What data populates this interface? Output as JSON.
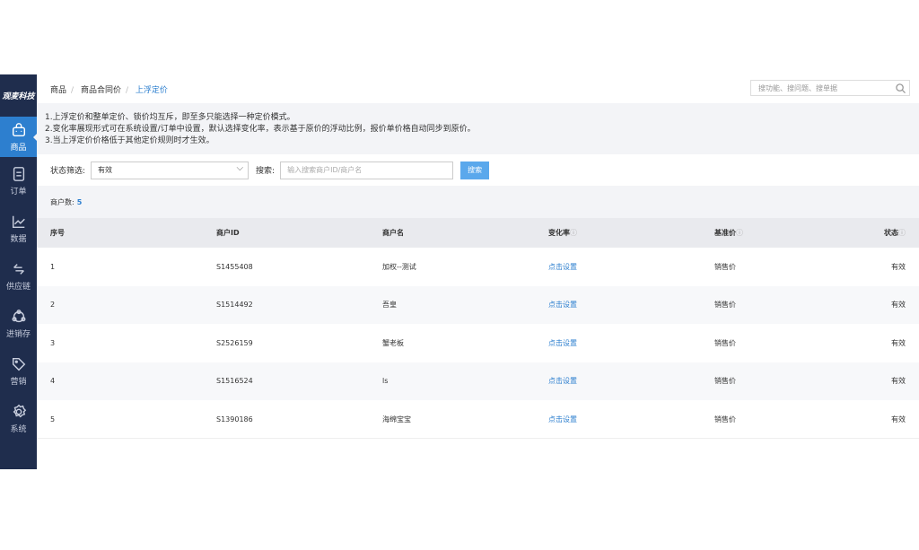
{
  "brand": "观麦科技",
  "sidebar": {
    "items": [
      {
        "label": "商品",
        "icon": "shopping-bag-icon",
        "active": true
      },
      {
        "label": "订单",
        "icon": "document-icon"
      },
      {
        "label": "数据",
        "icon": "chart-icon"
      },
      {
        "label": "供应链",
        "icon": "exchange-icon"
      },
      {
        "label": "进销存",
        "icon": "cycle-icon"
      },
      {
        "label": "营销",
        "icon": "tag-icon"
      },
      {
        "label": "系统",
        "icon": "gear-icon"
      }
    ]
  },
  "breadcrumb": [
    "商品",
    "商品合同价",
    "上浮定价"
  ],
  "global_search": {
    "placeholder": "搜功能、搜问题、搜单据"
  },
  "notice": [
    "1.上浮定价和整单定价、锁价均互斥，即至多只能选择一种定价模式。",
    "2.变化率展现形式可在系统设置/订单中设置，默认选择变化率，表示基于原价的浮动比例，报价单价格自动同步到原价。",
    "3.当上浮定价价格低于其他定价规则时才生效。"
  ],
  "filter": {
    "status_label": "状态筛选:",
    "status_value": "有效",
    "search_label": "搜索:",
    "search_placeholder": "输入搜索商户ID/商户名",
    "search_button": "搜索"
  },
  "count": {
    "label": "商户数:",
    "value": "5"
  },
  "table": {
    "headers": [
      "序号",
      "商户ID",
      "商户名",
      "变化率",
      "基准价",
      "状态"
    ],
    "rows": [
      [
        "1",
        "S1455408",
        "加权--测试",
        "点击设置",
        "销售价",
        "有效"
      ],
      [
        "2",
        "S1514492",
        "吾皇",
        "点击设置",
        "销售价",
        "有效"
      ],
      [
        "3",
        "S2526159",
        "蟹老板",
        "点击设置",
        "销售价",
        "有效"
      ],
      [
        "4",
        "S1516524",
        "ls",
        "点击设置",
        "销售价",
        "有效"
      ],
      [
        "5",
        "S1390186",
        "海绵宝宝",
        "点击设置",
        "销售价",
        "有效"
      ]
    ]
  },
  "colors": {
    "sidebar": "#1f2d4d",
    "accent": "#2d7fcf",
    "button": "#5aa8ec"
  }
}
